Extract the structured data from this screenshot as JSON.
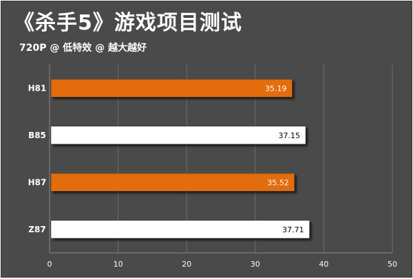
{
  "chart_data": {
    "type": "bar",
    "orientation": "horizontal",
    "title": "《杀手5》游戏项目测试",
    "subtitle": "720P @ 低特效 @ 越大越好",
    "categories": [
      "H81",
      "B85",
      "H87",
      "Z87"
    ],
    "values": [
      35.19,
      37.15,
      35.52,
      37.71
    ],
    "value_labels": [
      "35.19",
      "37.15",
      "35.52",
      "37.71"
    ],
    "bar_colors": [
      "#e36c0a",
      "#ffffff",
      "#e36c0a",
      "#ffffff"
    ],
    "label_colors": [
      "#ffffff",
      "#000000",
      "#ffffff",
      "#000000"
    ],
    "xlim": [
      0,
      50
    ],
    "xticks": [
      0,
      10,
      20,
      30,
      40,
      50
    ],
    "grid": true,
    "background": "#4a4a4a"
  }
}
